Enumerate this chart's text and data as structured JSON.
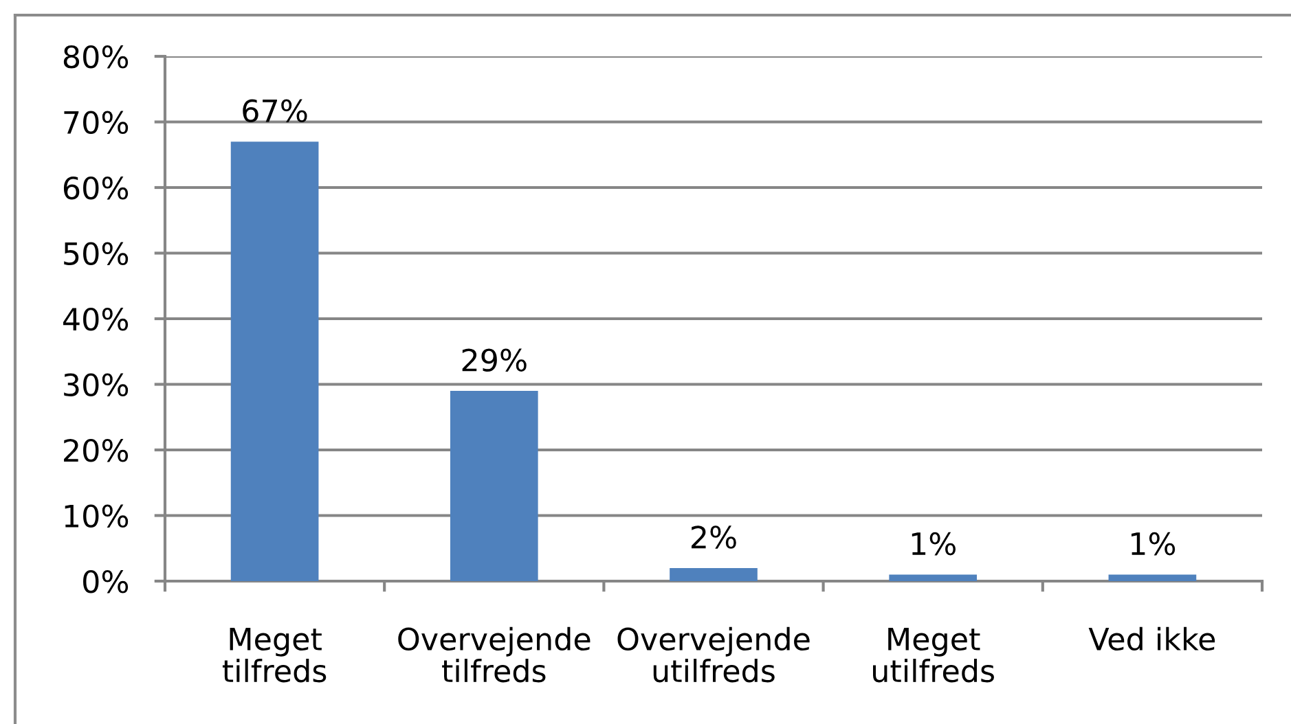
{
  "chart_data": {
    "type": "bar",
    "categories": [
      "Meget tilfreds",
      "Overvejende tilfreds",
      "Overvejende utilfreds",
      "Meget utilfreds",
      "Ved ikke"
    ],
    "values": [
      67,
      29,
      2,
      1,
      1
    ],
    "value_labels": [
      "67%",
      "29%",
      "2%",
      "1%",
      "1%"
    ],
    "color": "#4f81bd",
    "ylim": [
      0,
      80
    ],
    "yticks": [
      {
        "value": 0,
        "label": "0%"
      },
      {
        "value": 10,
        "label": "10%"
      },
      {
        "value": 20,
        "label": "20%"
      },
      {
        "value": 30,
        "label": "30%"
      },
      {
        "value": 40,
        "label": "40%"
      },
      {
        "value": 50,
        "label": "50%"
      },
      {
        "value": 60,
        "label": "60%"
      },
      {
        "value": 70,
        "label": "70%"
      },
      {
        "value": 80,
        "label": "80%"
      }
    ],
    "grid": "y"
  }
}
